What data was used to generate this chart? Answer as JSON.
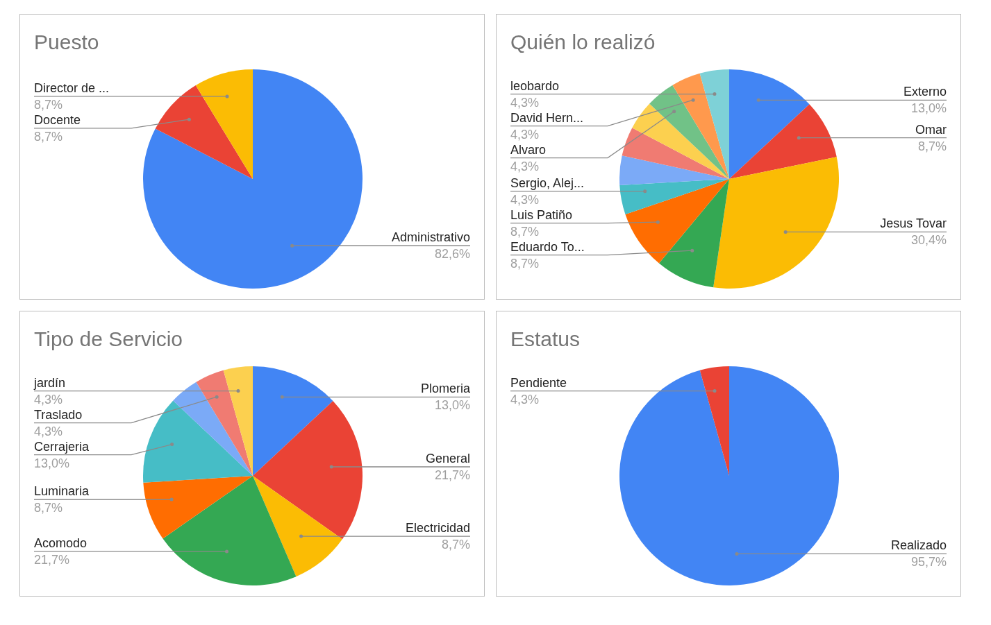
{
  "chart_data": [
    {
      "type": "pie",
      "title": "Puesto",
      "categories": [
        "Administrativo",
        "Docente",
        "Director de ..."
      ],
      "values": [
        82.6,
        8.7,
        8.7
      ],
      "colors": [
        "#4285f4",
        "#ea4335",
        "#fbbc04"
      ],
      "value_labels": [
        "82,6%",
        "8,7%",
        "8,7%"
      ]
    },
    {
      "type": "pie",
      "title": "Quién lo realizó",
      "categories": [
        "Externo",
        "Omar",
        "Jesus Tovar",
        "Eduardo To...",
        "Luis Patiño",
        "Sergio, Alej...",
        null,
        null,
        null,
        "Alvaro",
        "David Hern...",
        "leobardo"
      ],
      "values": [
        13.0,
        8.7,
        30.4,
        8.7,
        8.7,
        4.3,
        4.3,
        4.3,
        4.3,
        4.3,
        4.3,
        4.3
      ],
      "colors": [
        "#4285f4",
        "#ea4335",
        "#fbbc04",
        "#34a853",
        "#ff6d01",
        "#46bdc6",
        "#7baaf7",
        "#f07b72",
        "#fcd04f",
        "#71c287",
        "#ff994d",
        "#7ed1d7"
      ],
      "value_labels": [
        "13,0%",
        "8,7%",
        "30,4%",
        "8,7%",
        "8,7%",
        "4,3%",
        null,
        null,
        null,
        "4,3%",
        "4,3%",
        "4,3%"
      ]
    },
    {
      "type": "pie",
      "title": "Tipo de Servicio",
      "categories": [
        "Plomeria",
        "General",
        "Electricidad",
        "Acomodo",
        "Luminaria",
        "Cerrajeria",
        null,
        "Traslado",
        "jardín"
      ],
      "values": [
        13.0,
        21.7,
        8.7,
        21.7,
        8.7,
        13.0,
        4.3,
        4.3,
        4.3
      ],
      "colors": [
        "#4285f4",
        "#ea4335",
        "#fbbc04",
        "#34a853",
        "#ff6d01",
        "#46bdc6",
        "#7baaf7",
        "#f07b72",
        "#fcd04f"
      ],
      "value_labels": [
        "13,0%",
        "21,7%",
        "8,7%",
        "21,7%",
        "8,7%",
        "13,0%",
        null,
        "4,3%",
        "4,3%"
      ]
    },
    {
      "type": "pie",
      "title": "Estatus",
      "categories": [
        "Realizado",
        "Pendiente"
      ],
      "values": [
        95.7,
        4.3
      ],
      "colors": [
        "#4285f4",
        "#ea4335"
      ],
      "value_labels": [
        "95,7%",
        "4,3%"
      ]
    }
  ]
}
